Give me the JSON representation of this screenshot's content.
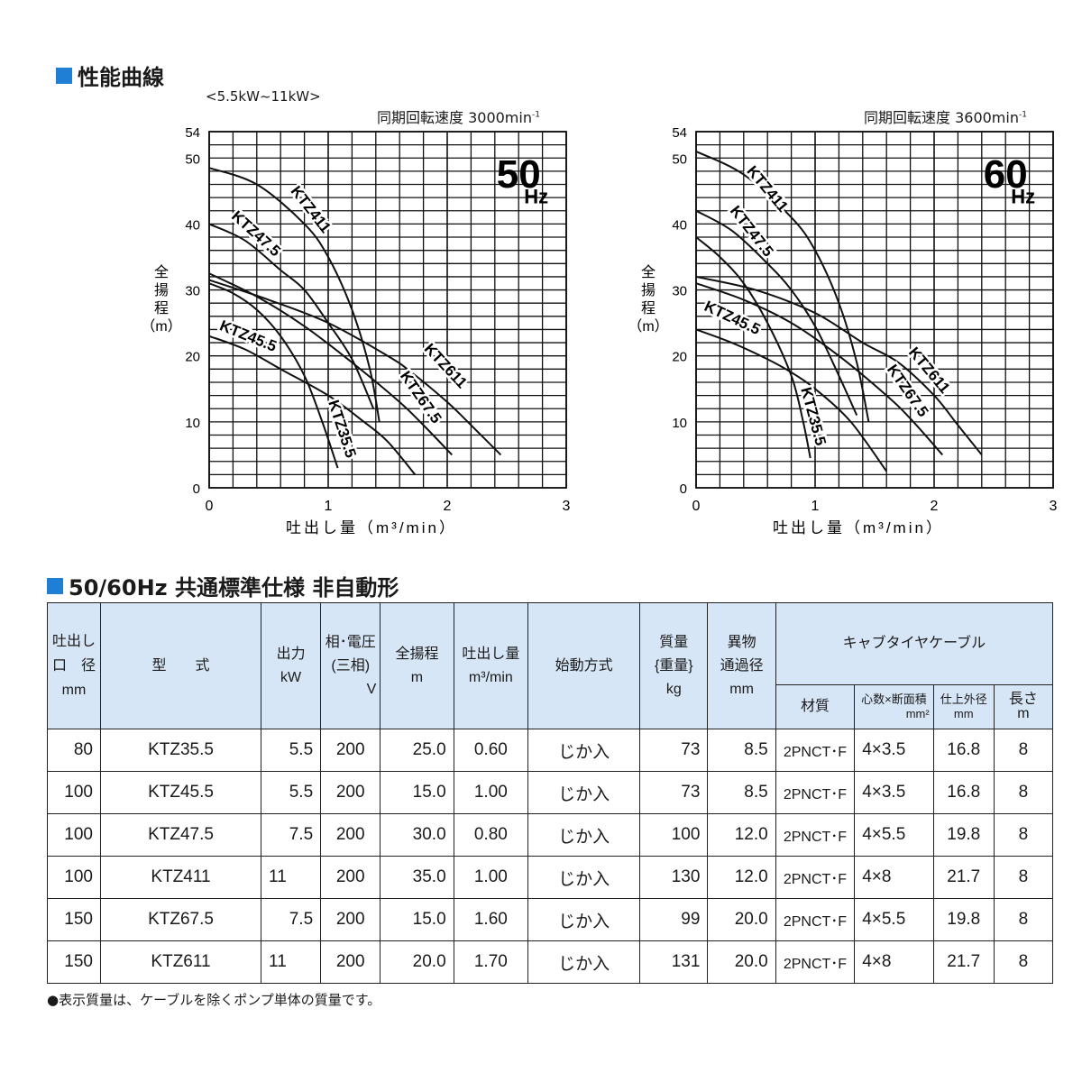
{
  "section1": {
    "title": "性能曲線",
    "range": "<5.5kW~11kW>"
  },
  "section2": {
    "title": "50/60Hz 共通標準仕様 非自動形"
  },
  "accent_color": "#1f7fd4",
  "header_bg": "#d6e6f6",
  "chart_data": [
    {
      "type": "line",
      "title": "50 Hz",
      "subtitle": "同期回転速度 3000min-1",
      "xlabel": "吐出し量（m3/min）",
      "ylabel": "全揚程（m）",
      "xlim": [
        0,
        3
      ],
      "ylim": [
        0,
        54
      ],
      "xticks": [
        0,
        1,
        2,
        3
      ],
      "yticks": [
        0,
        10,
        20,
        30,
        40,
        50,
        54
      ],
      "grid": true,
      "series": [
        {
          "name": "KTZ411",
          "x": [
            0,
            0.4,
            0.8,
            1.0,
            1.2,
            1.35,
            1.43
          ],
          "y": [
            48.5,
            46,
            40,
            35,
            27,
            18,
            10
          ]
        },
        {
          "name": "KTZ47.5",
          "x": [
            0,
            0.3,
            0.6,
            0.8,
            1.0,
            1.2,
            1.38
          ],
          "y": [
            40,
            37.5,
            33,
            30,
            25,
            19.5,
            12
          ]
        },
        {
          "name": "KTZ611",
          "x": [
            0,
            0.5,
            1.0,
            1.5,
            1.7,
            2.0,
            2.2,
            2.45
          ],
          "y": [
            31.5,
            28.5,
            25,
            20,
            17.5,
            13,
            9.5,
            5
          ]
        },
        {
          "name": "KTZ67.5",
          "x": [
            0,
            0.4,
            0.8,
            1.2,
            1.6,
            1.8,
            2.04
          ],
          "y": [
            32.5,
            29,
            24.5,
            19,
            13,
            9.5,
            5
          ]
        },
        {
          "name": "KTZ45.5",
          "x": [
            0,
            0.3,
            0.6,
            1.0,
            1.3,
            1.5,
            1.73
          ],
          "y": [
            23,
            21,
            18,
            14,
            10,
            7,
            2
          ]
        },
        {
          "name": "KTZ35.5",
          "x": [
            0,
            0.2,
            0.4,
            0.6,
            0.8,
            0.95,
            1.08
          ],
          "y": [
            31,
            29.5,
            27,
            23,
            17,
            10,
            3
          ]
        }
      ]
    },
    {
      "type": "line",
      "title": "60 Hz",
      "subtitle": "同期回転速度 3600min-1",
      "xlabel": "吐出し量（m3/min）",
      "ylabel": "全揚程（m）",
      "xlim": [
        0,
        3
      ],
      "ylim": [
        0,
        54
      ],
      "xticks": [
        0,
        1,
        2,
        3
      ],
      "yticks": [
        0,
        10,
        20,
        30,
        40,
        50,
        54
      ],
      "grid": true,
      "series": [
        {
          "name": "KTZ411",
          "x": [
            0,
            0.4,
            0.8,
            1.0,
            1.2,
            1.35,
            1.45
          ],
          "y": [
            51,
            47.5,
            41,
            36,
            28,
            19,
            10
          ]
        },
        {
          "name": "KTZ47.5",
          "x": [
            0,
            0.3,
            0.6,
            0.8,
            1.0,
            1.2,
            1.35
          ],
          "y": [
            42,
            39,
            34,
            30,
            24.5,
            17,
            11
          ]
        },
        {
          "name": "KTZ35.5",
          "x": [
            0,
            0.2,
            0.4,
            0.6,
            0.8,
            0.9,
            0.96
          ],
          "y": [
            38,
            35,
            31,
            25,
            17,
            10,
            4.5
          ]
        },
        {
          "name": "KTZ611",
          "x": [
            0,
            0.5,
            1.0,
            1.4,
            1.7,
            2.0,
            2.2,
            2.4
          ],
          "y": [
            32,
            30,
            26.5,
            22,
            19,
            14,
            9.5,
            5
          ]
        },
        {
          "name": "KTZ67.5",
          "x": [
            0,
            0.4,
            0.8,
            1.2,
            1.6,
            1.8,
            2.07
          ],
          "y": [
            31,
            28.5,
            25,
            20,
            14,
            10.5,
            5
          ]
        },
        {
          "name": "KTZ45.5",
          "x": [
            0,
            0.3,
            0.6,
            0.8,
            1.0,
            1.3,
            1.6
          ],
          "y": [
            24,
            22,
            19.5,
            17.5,
            15,
            10,
            2.5
          ]
        }
      ]
    }
  ],
  "charts": [
    {
      "hz": "50",
      "hz_unit": "Hz",
      "rpm_label": "同期回転速度 3000min",
      "rpm_sup": "-1",
      "ylabel_chars": [
        "全",
        "揚",
        "程",
        "（m）"
      ],
      "xlabel": "吐出し量（m³/min）"
    },
    {
      "hz": "60",
      "hz_unit": "Hz",
      "rpm_label": "同期回転速度 3600min",
      "rpm_sup": "-1",
      "ylabel_chars": [
        "全",
        "揚",
        "程",
        "（m）"
      ],
      "xlabel": "吐出し量（m³/min）"
    }
  ],
  "table": {
    "headers": {
      "bore": [
        "吐出し",
        "口　径",
        "mm"
      ],
      "model": "型　　式",
      "output": [
        "出力",
        "kW"
      ],
      "voltage": [
        "相･電圧",
        "(三相)",
        "V"
      ],
      "head": [
        "全揚程",
        "m"
      ],
      "flow": [
        "吐出し量",
        "m³/min"
      ],
      "start": "始動方式",
      "mass": [
        "質量",
        "{重量}",
        "kg"
      ],
      "solids": [
        "異物",
        "通過径",
        "mm"
      ],
      "cable": "キャブタイヤケーブル",
      "cable_material": "材質",
      "cable_cores": [
        "心数×断面積",
        "mm²"
      ],
      "cable_od": [
        "仕上外径",
        "mm"
      ],
      "cable_len": [
        "長さ",
        "m"
      ]
    },
    "rows": [
      {
        "bore": "80",
        "model": "KTZ35.5",
        "kw": "5.5",
        "v": "200",
        "head": "25.0",
        "flow": "0.60",
        "start": "じか入",
        "kg": "73",
        "solids": "8.5",
        "material": "2PNCT･F",
        "cores": "4×3.5",
        "od": "16.8",
        "len": "8"
      },
      {
        "bore": "100",
        "model": "KTZ45.5",
        "kw": "5.5",
        "v": "200",
        "head": "15.0",
        "flow": "1.00",
        "start": "じか入",
        "kg": "73",
        "solids": "8.5",
        "material": "2PNCT･F",
        "cores": "4×3.5",
        "od": "16.8",
        "len": "8"
      },
      {
        "bore": "100",
        "model": "KTZ47.5",
        "kw": "7.5",
        "v": "200",
        "head": "30.0",
        "flow": "0.80",
        "start": "じか入",
        "kg": "100",
        "solids": "12.0",
        "material": "2PNCT･F",
        "cores": "4×5.5",
        "od": "19.8",
        "len": "8"
      },
      {
        "bore": "100",
        "model": "KTZ411",
        "kw": "11",
        "v": "200",
        "head": "35.0",
        "flow": "1.00",
        "start": "じか入",
        "kg": "130",
        "solids": "12.0",
        "material": "2PNCT･F",
        "cores": "4×8",
        "od": "21.7",
        "len": "8"
      },
      {
        "bore": "150",
        "model": "KTZ67.5",
        "kw": "7.5",
        "v": "200",
        "head": "15.0",
        "flow": "1.60",
        "start": "じか入",
        "kg": "99",
        "solids": "20.0",
        "material": "2PNCT･F",
        "cores": "4×5.5",
        "od": "19.8",
        "len": "8"
      },
      {
        "bore": "150",
        "model": "KTZ611",
        "kw": "11",
        "v": "200",
        "head": "20.0",
        "flow": "1.70",
        "start": "じか入",
        "kg": "131",
        "solids": "20.0",
        "material": "2PNCT･F",
        "cores": "4×8",
        "od": "21.7",
        "len": "8"
      }
    ]
  },
  "note": "●表示質量は、ケーブルを除くポンプ単体の質量です。"
}
